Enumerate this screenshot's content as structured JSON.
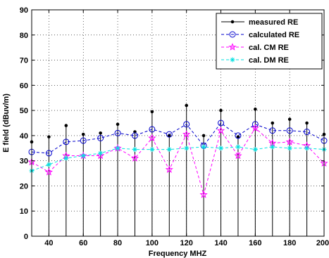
{
  "chart_data": {
    "type": "line",
    "xlabel": "Frequency MHZ",
    "ylabel": "E field (dBuv/m)",
    "xlim": [
      30,
      200
    ],
    "ylim": [
      0,
      90
    ],
    "xticks": [
      40,
      60,
      80,
      100,
      120,
      140,
      160,
      180,
      200
    ],
    "yticks": [
      0,
      10,
      20,
      30,
      40,
      50,
      60,
      70,
      80,
      90
    ],
    "grid": "dotted",
    "legend_position": "top-right",
    "x": [
      30,
      40,
      50,
      60,
      70,
      80,
      90,
      100,
      110,
      120,
      130,
      140,
      150,
      160,
      170,
      180,
      190,
      200
    ],
    "series": [
      {
        "name": "measured RE",
        "color": "#000000",
        "style": "stem",
        "marker": "dot",
        "values": [
          37.5,
          39.5,
          44.0,
          40.5,
          41.0,
          44.5,
          41.5,
          49.5,
          40.0,
          52.0,
          40.0,
          50.0,
          39.5,
          50.5,
          45.0,
          46.5,
          45.0,
          40.5
        ]
      },
      {
        "name": "calculated RE",
        "color": "#0000cc",
        "style": "dashed",
        "marker": "circle",
        "values": [
          33.5,
          33.0,
          37.5,
          38.0,
          39.0,
          41.0,
          40.0,
          42.5,
          40.5,
          44.5,
          36.0,
          45.0,
          40.0,
          44.5,
          42.0,
          42.0,
          41.5,
          38.0
        ]
      },
      {
        "name": "cal. CM RE",
        "color": "#ff00ff",
        "style": "dashed",
        "marker": "star",
        "values": [
          29.5,
          25.5,
          32.0,
          32.0,
          32.0,
          35.0,
          31.0,
          39.0,
          26.5,
          40.5,
          16.5,
          42.0,
          32.0,
          43.0,
          37.0,
          37.5,
          36.0,
          29.0
        ]
      },
      {
        "name": "cal. DM RE",
        "color": "#00e0e0",
        "style": "dashed",
        "marker": "asterisk",
        "values": [
          26.0,
          28.5,
          31.0,
          32.0,
          33.0,
          35.0,
          34.5,
          34.5,
          34.5,
          35.0,
          35.5,
          35.0,
          35.5,
          34.5,
          35.5,
          35.0,
          35.0,
          34.5
        ]
      }
    ]
  }
}
